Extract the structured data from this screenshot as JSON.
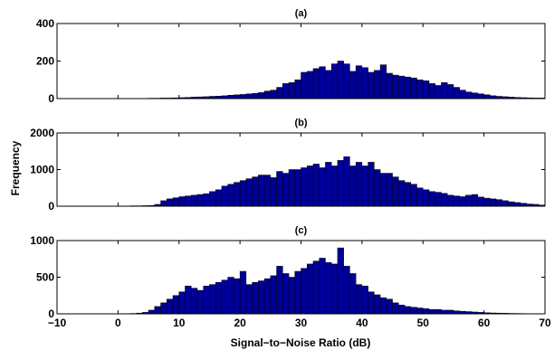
{
  "figure": {
    "xlabel": "Signal−to−Noise Ratio (dB)",
    "ylabel": "Frequency",
    "bar_color": "#000099"
  },
  "chart_data": [
    {
      "type": "bar",
      "title": "(a)",
      "x_start": -10,
      "bin_width": 1,
      "xlim": [
        -10,
        70
      ],
      "xticks": [
        -10,
        0,
        10,
        20,
        30,
        40,
        50,
        60,
        70
      ],
      "ylim": [
        0,
        400
      ],
      "yticks": [
        0,
        200,
        400
      ],
      "values": [
        0,
        0,
        0,
        0,
        0,
        0,
        0,
        0,
        0,
        0,
        0,
        0,
        1,
        1,
        2,
        2,
        3,
        3,
        4,
        5,
        6,
        6,
        7,
        8,
        9,
        10,
        12,
        14,
        16,
        18,
        20,
        22,
        25,
        28,
        32,
        40,
        55,
        75,
        90,
        140,
        160,
        170,
        180,
        175,
        190,
        190,
        200,
        180,
        175,
        160,
        140,
        135,
        130,
        120,
        110,
        95,
        80,
        60,
        45,
        30,
        20,
        15,
        12,
        10,
        8,
        6,
        5,
        4,
        3,
        3,
        2,
        2,
        2,
        1,
        1,
        1,
        1,
        0,
        0,
        0
      ],
      "values_note": "",
      "show_xticks": false,
      "values_dense": [
        0,
        0,
        0,
        0,
        0,
        0,
        0,
        0,
        0,
        0,
        0,
        0,
        0,
        1,
        1,
        2,
        2,
        3,
        3,
        4,
        5,
        6,
        8,
        9,
        10,
        12,
        13,
        15,
        18,
        20,
        22,
        25,
        28,
        32,
        40,
        45,
        60,
        80,
        85,
        100,
        140,
        145,
        160,
        170,
        150,
        185,
        200,
        185,
        145,
        175,
        165,
        140,
        150,
        180,
        135,
        125,
        120,
        115,
        110,
        100,
        95,
        80,
        70,
        85,
        75,
        60,
        45,
        35,
        30,
        25,
        20,
        15,
        12,
        10,
        8,
        6,
        5,
        4,
        3,
        3
      ]
    },
    {
      "type": "bar",
      "title": "(b)",
      "x_start": -10,
      "bin_width": 1,
      "xlim": [
        -10,
        70
      ],
      "xticks": [
        -10,
        0,
        10,
        20,
        30,
        40,
        50,
        60,
        70
      ],
      "ylim": [
        0,
        2000
      ],
      "yticks": [
        0,
        1000,
        2000
      ],
      "show_xticks": false,
      "values_dense": [
        5,
        5,
        5,
        5,
        5,
        5,
        5,
        5,
        5,
        5,
        5,
        5,
        10,
        10,
        15,
        20,
        50,
        150,
        200,
        230,
        260,
        280,
        300,
        320,
        340,
        400,
        450,
        550,
        600,
        650,
        700,
        750,
        800,
        850,
        850,
        780,
        950,
        900,
        1000,
        1000,
        1050,
        1100,
        1150,
        1050,
        1200,
        1100,
        1250,
        1350,
        1100,
        1200,
        1100,
        1200,
        1000,
        900,
        900,
        800,
        700,
        650,
        600,
        500,
        450,
        400,
        380,
        350,
        300,
        280,
        260,
        300,
        320,
        250,
        220,
        200,
        180,
        150,
        120,
        100,
        80,
        60,
        50,
        30
      ]
    },
    {
      "type": "bar",
      "title": "(c)",
      "x_start": -10,
      "bin_width": 1,
      "xlim": [
        -10,
        70
      ],
      "xticks": [
        -10,
        0,
        10,
        20,
        30,
        40,
        50,
        60,
        70
      ],
      "ylim": [
        0,
        1000
      ],
      "yticks": [
        0,
        500,
        1000
      ],
      "show_xticks": true,
      "values_dense": [
        2,
        2,
        2,
        2,
        2,
        2,
        2,
        2,
        2,
        2,
        2,
        2,
        5,
        10,
        20,
        50,
        100,
        150,
        200,
        250,
        300,
        380,
        350,
        320,
        380,
        400,
        430,
        460,
        500,
        480,
        580,
        400,
        430,
        450,
        480,
        520,
        650,
        550,
        500,
        580,
        620,
        680,
        720,
        760,
        700,
        680,
        900,
        650,
        550,
        400,
        380,
        300,
        260,
        220,
        200,
        150,
        120,
        100,
        90,
        80,
        70,
        60,
        60,
        50,
        50,
        40,
        35,
        30,
        25,
        20,
        15,
        12,
        10,
        8,
        6,
        5,
        4,
        3,
        3,
        2
      ]
    }
  ]
}
